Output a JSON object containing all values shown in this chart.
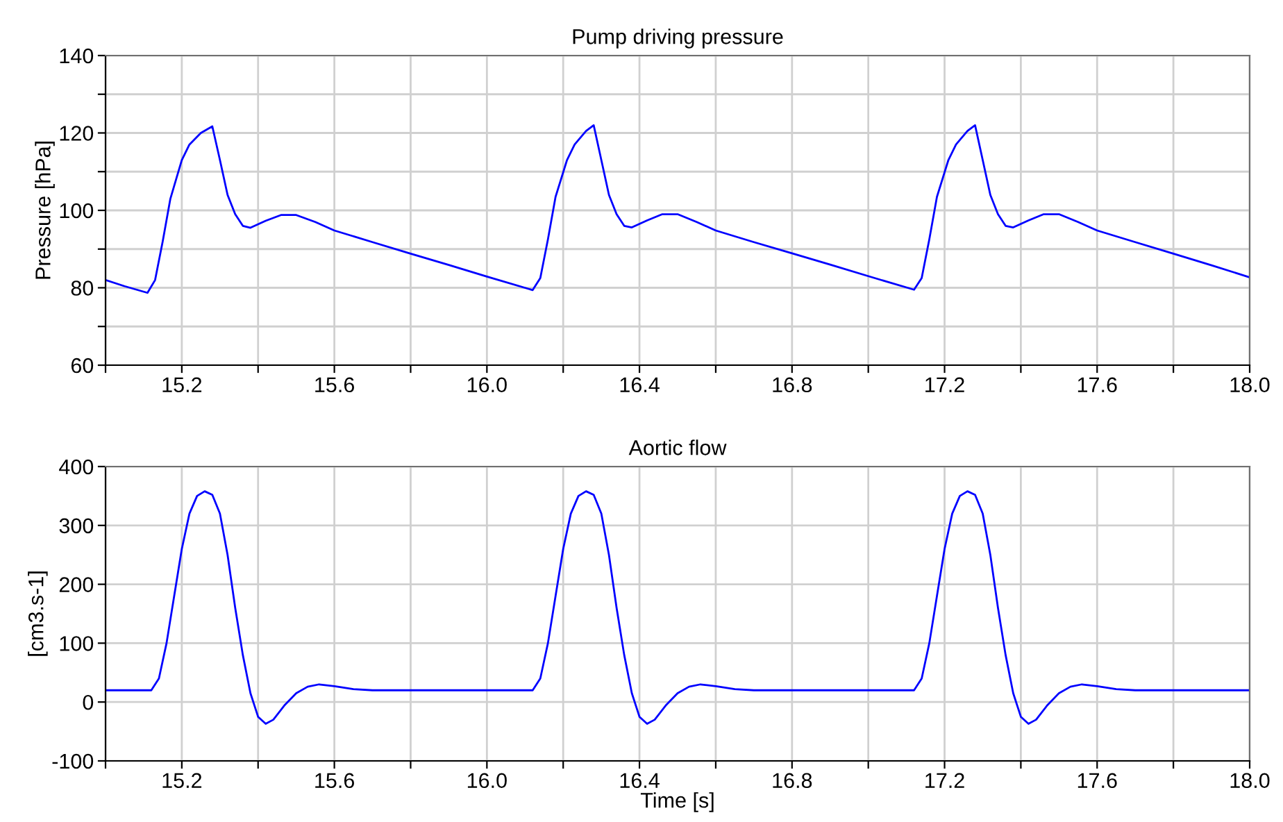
{
  "chart_data": [
    {
      "type": "line",
      "title": "Pump driving pressure",
      "ylabel": "Pressure [hPa]",
      "x": [
        15.0,
        15.05,
        15.11,
        15.13,
        15.15,
        15.17,
        15.2,
        15.22,
        15.25,
        15.28,
        15.3,
        15.32,
        15.34,
        15.36,
        15.38,
        15.42,
        15.46,
        15.5,
        15.55,
        15.6,
        15.7,
        15.8,
        15.9,
        16.0,
        16.12,
        16.14,
        16.16,
        16.18,
        16.21,
        16.23,
        16.26,
        16.28,
        16.3,
        16.32,
        16.34,
        16.36,
        16.38,
        16.42,
        16.46,
        16.5,
        16.55,
        16.6,
        16.7,
        16.8,
        16.9,
        17.0,
        17.12,
        17.14,
        17.16,
        17.18,
        17.21,
        17.23,
        17.26,
        17.28,
        17.3,
        17.32,
        17.34,
        17.36,
        17.38,
        17.42,
        17.46,
        17.5,
        17.55,
        17.6,
        17.7,
        17.8,
        17.9,
        18.0
      ],
      "series": [
        {
          "color": "#0000ff",
          "values": [
            82,
            80.4,
            78.7,
            82,
            92,
            103,
            113,
            117,
            120,
            121.7,
            113,
            104,
            99,
            96,
            95.5,
            97.3,
            98.8,
            98.8,
            97,
            94.8,
            91.8,
            88.8,
            85.9,
            82.9,
            79.4,
            82.5,
            92.5,
            103.5,
            113,
            117,
            120.5,
            122,
            113,
            104,
            99,
            96,
            95.6,
            97.4,
            99,
            99,
            97,
            94.8,
            91.8,
            88.9,
            86,
            83,
            79.5,
            82.5,
            92.5,
            103.5,
            113,
            117,
            120.5,
            122,
            113,
            104,
            99,
            96,
            95.6,
            97.4,
            99,
            99,
            97,
            94.8,
            91.8,
            88.8,
            85.8,
            82.7
          ]
        }
      ],
      "xlim": [
        15.0,
        18.0
      ],
      "ylim": [
        60,
        140
      ],
      "xticks": [
        {
          "value": 15.0,
          "label": null
        },
        15.2,
        {
          "value": 15.4,
          "label": null
        },
        15.6,
        {
          "value": 15.8,
          "label": null
        },
        {
          "value": 16.0,
          "label": "16.0"
        },
        {
          "value": 16.2,
          "label": null
        },
        16.4,
        {
          "value": 16.6,
          "label": null
        },
        16.8,
        {
          "value": 17.0,
          "label": null
        },
        17.2,
        {
          "value": 17.4,
          "label": null
        },
        17.6,
        {
          "value": 17.8,
          "label": null
        },
        {
          "value": 18.0,
          "label": "18.0"
        }
      ],
      "yticks": [
        60,
        {
          "value": 70,
          "label": null
        },
        80,
        {
          "value": 90,
          "label": null
        },
        100,
        {
          "value": 110,
          "label": null
        },
        120,
        {
          "value": 130,
          "label": null
        },
        140
      ],
      "grid": true,
      "line_style": "solid"
    },
    {
      "type": "line",
      "title": "Aortic flow",
      "ylabel": "[cm3.s-1]",
      "xlabel": "Time [s]",
      "x": [
        15.0,
        15.12,
        15.14,
        15.16,
        15.18,
        15.2,
        15.22,
        15.24,
        15.26,
        15.28,
        15.3,
        15.32,
        15.34,
        15.36,
        15.38,
        15.4,
        15.42,
        15.44,
        15.47,
        15.5,
        15.53,
        15.56,
        15.6,
        15.65,
        15.7,
        16.12,
        16.14,
        16.16,
        16.18,
        16.2,
        16.22,
        16.24,
        16.26,
        16.28,
        16.3,
        16.32,
        16.34,
        16.36,
        16.38,
        16.4,
        16.42,
        16.44,
        16.47,
        16.5,
        16.53,
        16.56,
        16.6,
        16.65,
        16.7,
        17.12,
        17.14,
        17.16,
        17.18,
        17.2,
        17.22,
        17.24,
        17.26,
        17.28,
        17.3,
        17.32,
        17.34,
        17.36,
        17.38,
        17.4,
        17.42,
        17.44,
        17.47,
        17.5,
        17.53,
        17.56,
        17.6,
        17.65,
        17.7,
        18.0
      ],
      "series": [
        {
          "color": "#0000ff",
          "values": [
            20,
            20,
            40,
            100,
            180,
            260,
            320,
            350,
            358,
            352,
            320,
            250,
            160,
            80,
            15,
            -25,
            -37,
            -30,
            -5,
            15,
            26,
            30,
            27,
            22,
            20,
            20,
            40,
            100,
            180,
            260,
            320,
            350,
            358,
            352,
            320,
            250,
            160,
            80,
            15,
            -25,
            -37,
            -30,
            -5,
            15,
            26,
            30,
            27,
            22,
            20,
            20,
            40,
            100,
            180,
            260,
            320,
            350,
            358,
            352,
            320,
            250,
            160,
            80,
            15,
            -25,
            -37,
            -30,
            -5,
            15,
            26,
            30,
            27,
            22,
            20,
            20
          ]
        }
      ],
      "xlim": [
        15.0,
        18.0
      ],
      "ylim": [
        -100,
        400
      ],
      "xticks": [
        {
          "value": 15.0,
          "label": null
        },
        15.2,
        {
          "value": 15.4,
          "label": null
        },
        15.6,
        {
          "value": 15.8,
          "label": null
        },
        {
          "value": 16.0,
          "label": "16.0"
        },
        {
          "value": 16.2,
          "label": null
        },
        16.4,
        {
          "value": 16.6,
          "label": null
        },
        16.8,
        {
          "value": 17.0,
          "label": null
        },
        17.2,
        {
          "value": 17.4,
          "label": null
        },
        17.6,
        {
          "value": 17.8,
          "label": null
        },
        {
          "value": 18.0,
          "label": "18.0"
        }
      ],
      "yticks": [
        -100,
        0,
        100,
        200,
        300,
        400
      ],
      "grid": true,
      "line_style": "solid"
    }
  ]
}
